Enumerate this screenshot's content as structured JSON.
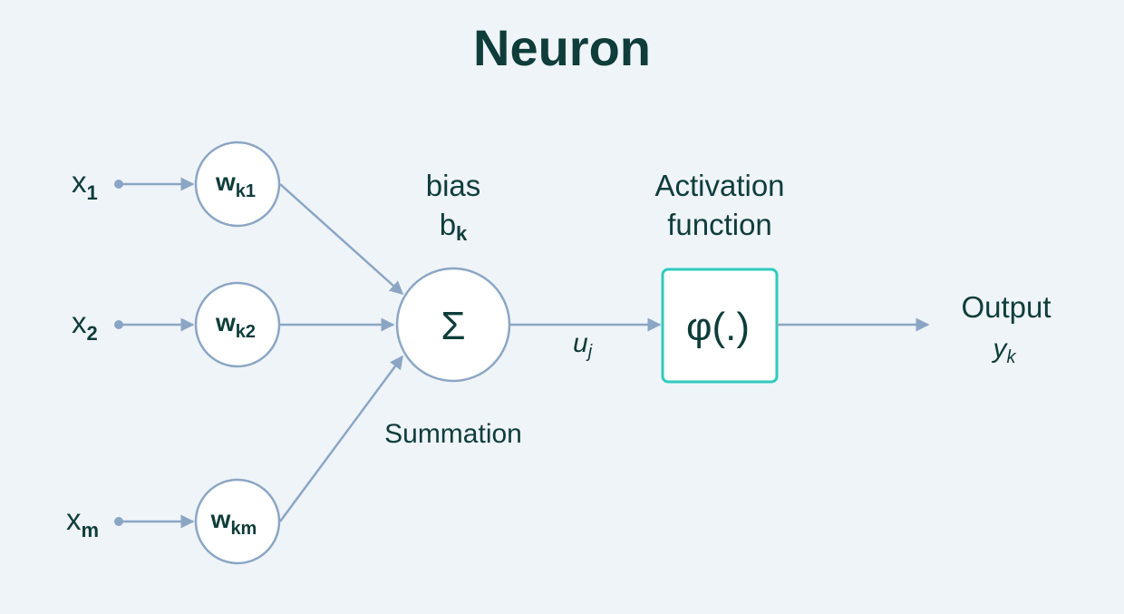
{
  "title": "Neuron",
  "colors": {
    "background": "#eff4f9",
    "text": "#0e3d3a",
    "line": "#8ba6c4",
    "activation_border": "#2ecbbd"
  },
  "inputs": [
    {
      "name": "x",
      "sub": "1",
      "weight": "w",
      "weight_sub": "k1"
    },
    {
      "name": "x",
      "sub": "2",
      "weight": "w",
      "weight_sub": "k2"
    },
    {
      "name": "x",
      "sub": "m",
      "weight": "w",
      "weight_sub": "km"
    }
  ],
  "bias": {
    "label": "bias",
    "symbol": "b",
    "sub": "k"
  },
  "summation": {
    "symbol": "Σ",
    "label": "Summation"
  },
  "net_input": {
    "symbol": "u",
    "sub": "j"
  },
  "activation": {
    "line1": "Activation",
    "line2": "function",
    "symbol": "φ(.)"
  },
  "output": {
    "label": "Output",
    "symbol": "y",
    "sub": "k"
  }
}
